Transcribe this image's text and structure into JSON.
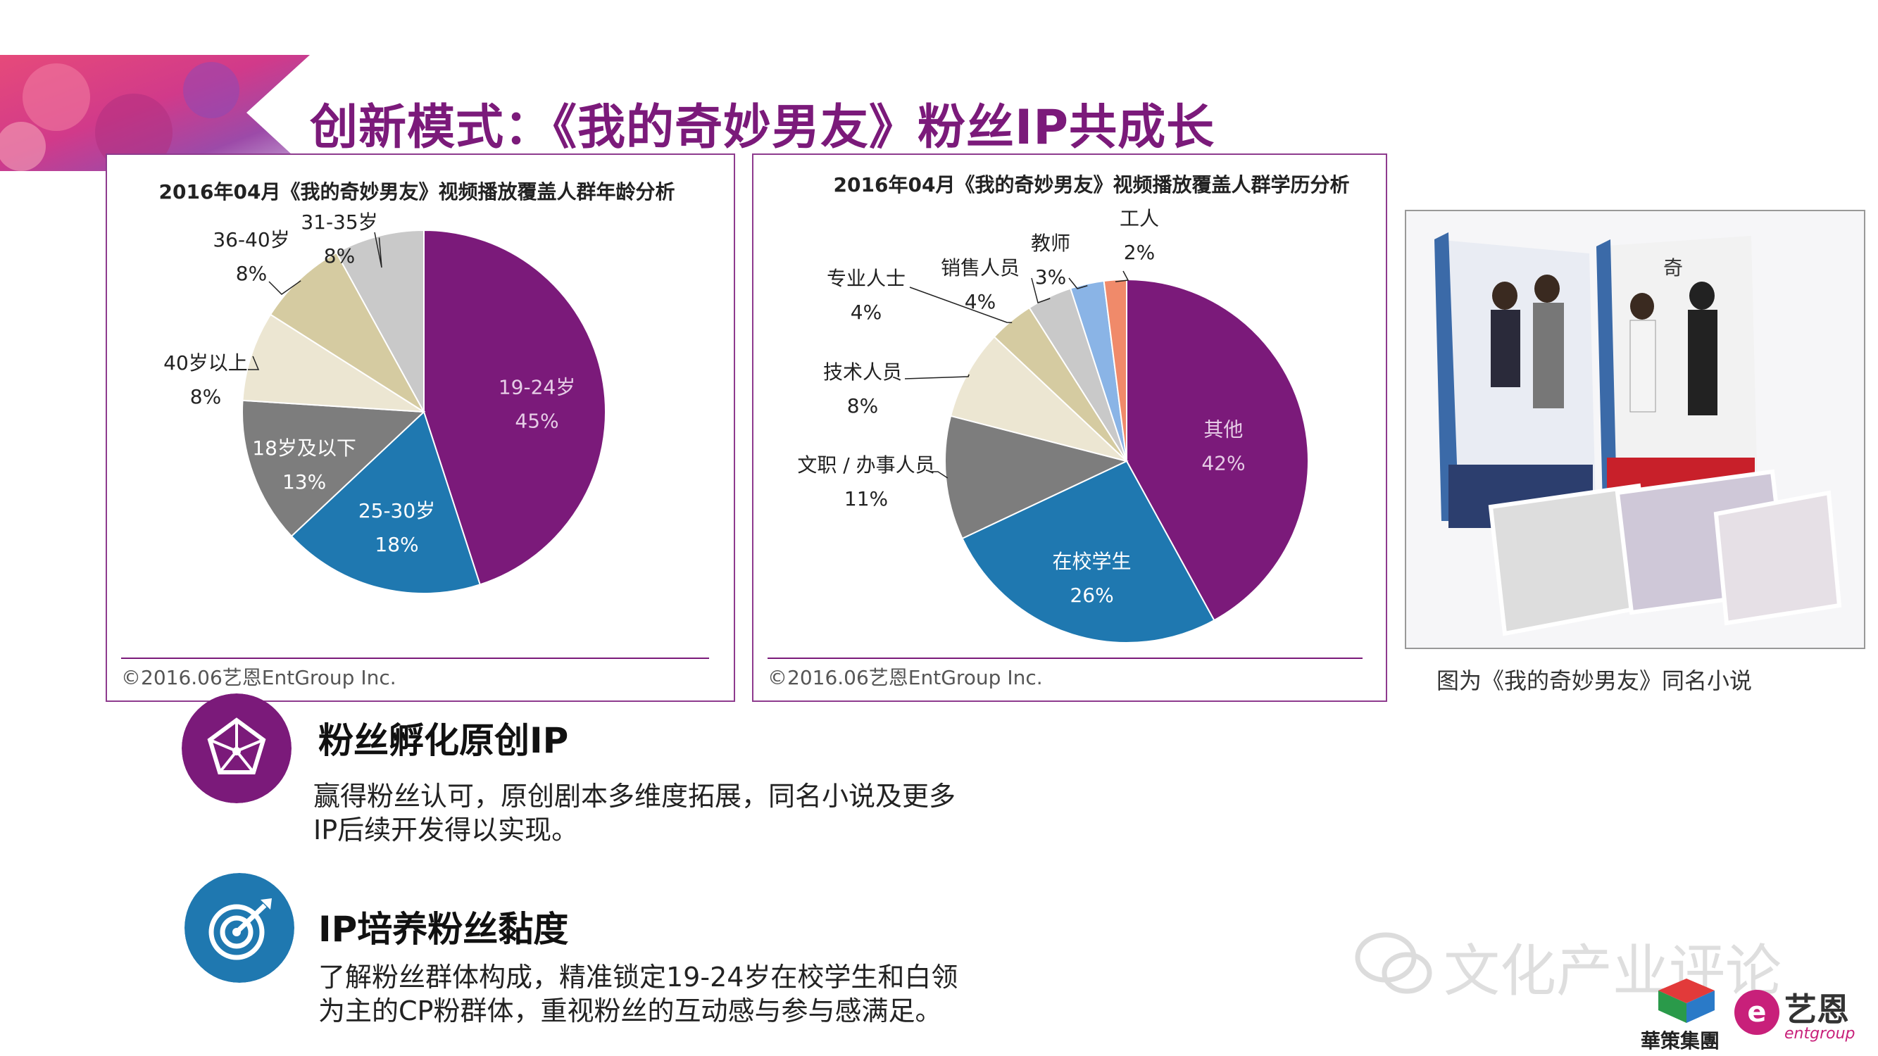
{
  "title": "创新模式：《我的奇妙男友》粉丝IP共成长",
  "panels": {
    "age": {
      "copyright": "©2016.06艺恩EntGroup Inc."
    },
    "edu": {
      "copyright": "©2016.06艺恩EntGroup Inc."
    }
  },
  "chart_data": [
    {
      "type": "pie",
      "title": "2016年04月《我的奇妙男友》视频播放覆盖人群年龄分析",
      "slices": [
        {
          "label": "19-24岁",
          "value": 45,
          "display": "45%",
          "color": "#7b1a7a"
        },
        {
          "label": "25-30岁",
          "value": 18,
          "display": "18%",
          "color": "#1f78b0"
        },
        {
          "label": "18岁及以下",
          "value": 13,
          "display": "13%",
          "color": "#7d7d7d"
        },
        {
          "label": "40岁以上",
          "value": 8,
          "display": "8%",
          "color": "#ece6d2"
        },
        {
          "label": "36-40岁",
          "value": 8,
          "display": "8%",
          "color": "#d5cba1"
        },
        {
          "label": "31-35岁",
          "value": 8,
          "display": "8%",
          "color": "#c9c9c9"
        }
      ]
    },
    {
      "type": "pie",
      "title": "2016年04月《我的奇妙男友》视频播放覆盖人群学历分析",
      "slices": [
        {
          "label": "其他",
          "value": 42,
          "display": "42%",
          "color": "#7b1a7a"
        },
        {
          "label": "在校学生",
          "value": 26,
          "display": "26%",
          "color": "#1f78b0"
        },
        {
          "label": "文职 / 办事人员",
          "value": 11,
          "display": "11%",
          "color": "#7d7d7d"
        },
        {
          "label": "技术人员",
          "value": 8,
          "display": "8%",
          "color": "#ece6d2"
        },
        {
          "label": "专业人士",
          "value": 4,
          "display": "4%",
          "color": "#d5cba1"
        },
        {
          "label": "销售人员",
          "value": 4,
          "display": "4%",
          "color": "#c9c9c9"
        },
        {
          "label": "教师",
          "value": 3,
          "display": "3%",
          "color": "#8ab4e6"
        },
        {
          "label": "工人",
          "value": 2,
          "display": "2%",
          "color": "#f08a6a"
        }
      ]
    }
  ],
  "photo": {
    "caption": "图为《我的奇妙男友》同名小说"
  },
  "features": [
    {
      "title": "粉丝孵化原创IP",
      "desc": [
        "赢得粉丝认可，原创剧本多维度拓展，同名小说及更多",
        "IP后续开发得以实现。"
      ],
      "icon": "pentagon-network-icon",
      "color": "#7b1a7a"
    },
    {
      "title": "IP培养粉丝黏度",
      "desc": [
        "了解粉丝群体构成，精准锁定19-24岁在校学生和白领",
        "为主的CP粉群体，重视粉丝的互动感与参与感满足。"
      ],
      "icon": "target-arrow-icon",
      "color": "#1f78b0"
    }
  ],
  "watermark": "文化产业评论",
  "logos": {
    "huace": "華策集團",
    "entgroup_cn": "艺恩",
    "entgroup_en": "entgroup"
  }
}
